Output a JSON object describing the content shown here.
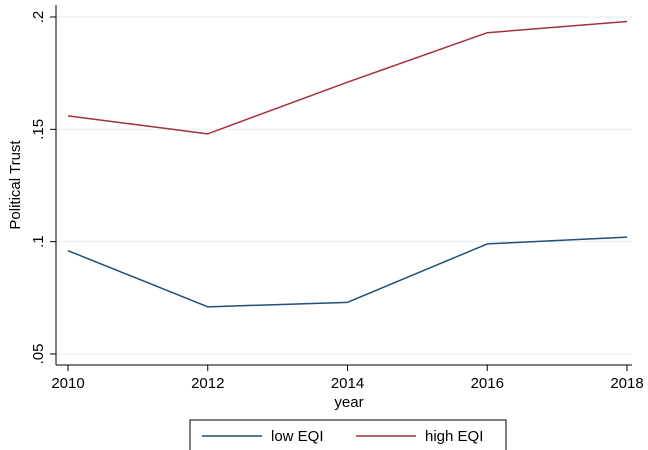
{
  "chart_data": {
    "type": "line",
    "title": "",
    "xlabel": "year",
    "ylabel": "Political Trust",
    "x": [
      2010,
      2012,
      2014,
      2016,
      2018
    ],
    "x_ticks": [
      "2010",
      "2012",
      "2014",
      "2016",
      "2018"
    ],
    "y_ticks": [
      0.05,
      0.1,
      0.15,
      0.2
    ],
    "y_tick_labels": [
      ".05",
      ".1",
      ".15",
      ".2"
    ],
    "xlim": [
      2010,
      2018
    ],
    "ylim": [
      0.05,
      0.2
    ],
    "grid": "horizontal",
    "legend_position": "bottom",
    "series": [
      {
        "name": "low EQI",
        "color": "#1f4e79",
        "values": [
          0.096,
          0.071,
          0.073,
          0.099,
          0.102
        ]
      },
      {
        "name": "high EQI",
        "color": "#a4323d",
        "values": [
          0.156,
          0.148,
          0.171,
          0.193,
          0.198
        ]
      }
    ]
  }
}
